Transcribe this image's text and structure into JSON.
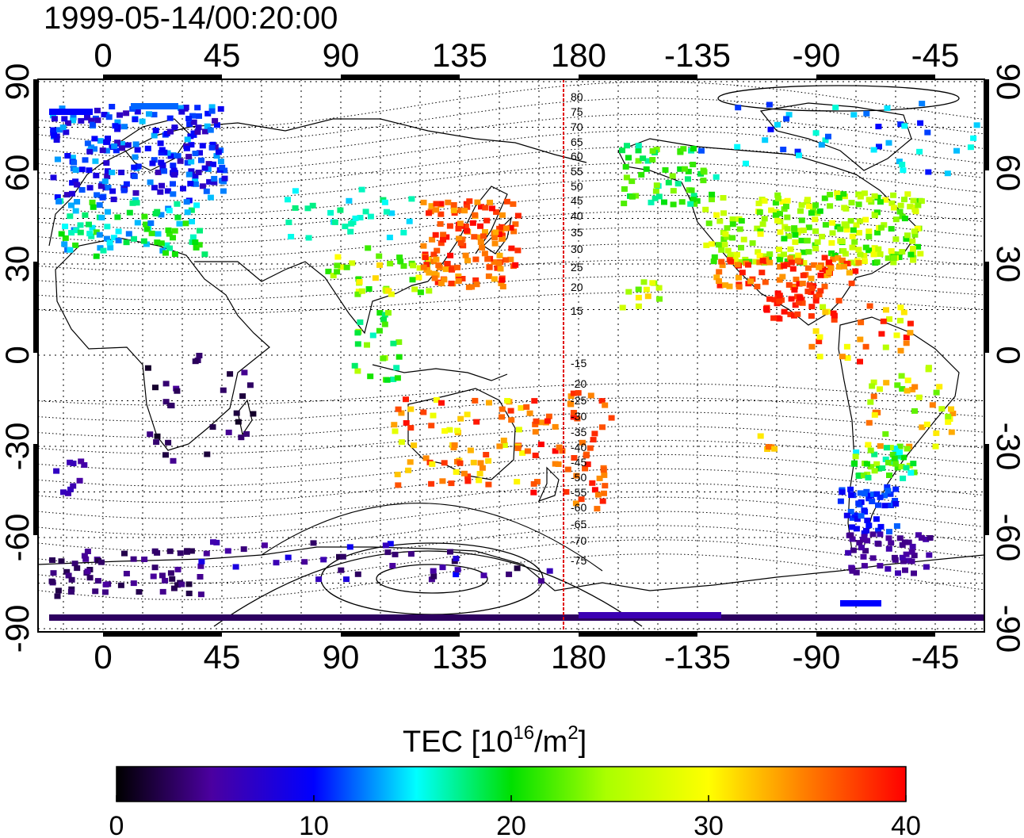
{
  "title": "1999-05-14/00:20:00",
  "lon_ticks": [
    "0",
    "45",
    "90",
    "135",
    "180",
    "-135",
    "-90",
    "-45"
  ],
  "lat_ticks": [
    "90",
    "60",
    "30",
    "0",
    "-30",
    "-60",
    "-90"
  ],
  "contour_labels": [
    "80",
    "75",
    "70",
    "65",
    "60",
    "55",
    "50",
    "45",
    "40",
    "35",
    "30",
    "25",
    "20",
    "15",
    "-15",
    "-20",
    "-25",
    "-30",
    "-35",
    "-40",
    "-45",
    "-50",
    "-55",
    "-60",
    "-65",
    "-70",
    "-75"
  ],
  "colorbar": {
    "label_main": "TEC  [10",
    "label_exp": "16",
    "label_mid": "/m",
    "label_exp2": "2",
    "label_end": "]",
    "ticks": [
      "0",
      "10",
      "20",
      "30",
      "40"
    ]
  },
  "colors": {
    "low": "#000000",
    "purple": "#4b00a0",
    "blue": "#0000ff",
    "cyan": "#00ffff",
    "green": "#00e000",
    "yellow": "#ffff00",
    "orange": "#ff8000",
    "red": "#ff0000"
  }
}
